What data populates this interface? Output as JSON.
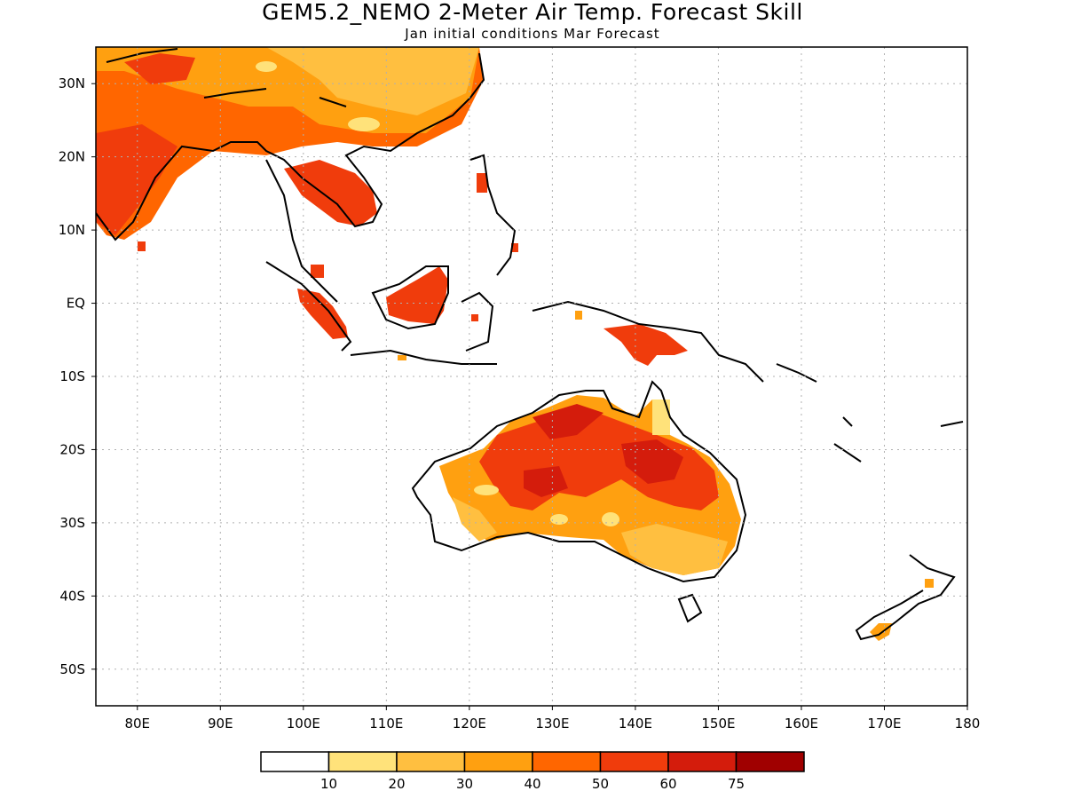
{
  "header": {
    "title": "GEM5.2_NEMO 2-Meter Air Temp. Forecast Skill",
    "subtitle": "Jan initial conditions  Mar Forecast"
  },
  "map": {
    "lon_range": [
      75,
      180
    ],
    "lat_range": [
      -55,
      35
    ],
    "lon_labels": [
      "80E",
      "90E",
      "100E",
      "110E",
      "120E",
      "130E",
      "140E",
      "150E",
      "160E",
      "170E",
      "180"
    ],
    "lat_labels": [
      "30N",
      "20N",
      "10N",
      "EQ",
      "10S",
      "20S",
      "30S",
      "40S",
      "50S"
    ]
  },
  "colorbar": {
    "colors": [
      "#ffffff",
      "#ffe27a",
      "#ffbf40",
      "#ffa010",
      "#ff6600",
      "#f03c0c",
      "#d41c0c",
      "#a00000"
    ],
    "labels": [
      "10",
      "20",
      "30",
      "40",
      "50",
      "60",
      "75"
    ]
  }
}
